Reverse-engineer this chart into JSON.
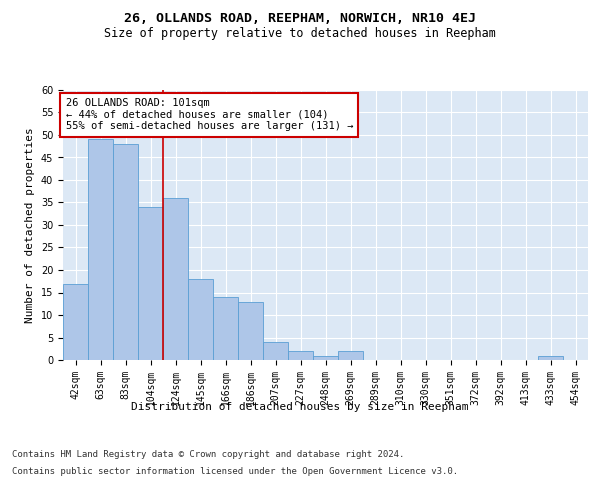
{
  "title": "26, OLLANDS ROAD, REEPHAM, NORWICH, NR10 4EJ",
  "subtitle": "Size of property relative to detached houses in Reepham",
  "xlabel": "Distribution of detached houses by size in Reepham",
  "ylabel": "Number of detached properties",
  "categories": [
    "42sqm",
    "63sqm",
    "83sqm",
    "104sqm",
    "124sqm",
    "145sqm",
    "166sqm",
    "186sqm",
    "207sqm",
    "227sqm",
    "248sqm",
    "269sqm",
    "289sqm",
    "310sqm",
    "330sqm",
    "351sqm",
    "372sqm",
    "392sqm",
    "413sqm",
    "433sqm",
    "454sqm"
  ],
  "values": [
    17,
    49,
    48,
    34,
    36,
    18,
    14,
    13,
    4,
    2,
    1,
    2,
    0,
    0,
    0,
    0,
    0,
    0,
    0,
    1,
    0
  ],
  "bar_color": "#aec6e8",
  "bar_edge_color": "#5a9fd4",
  "vline_x_index": 3,
  "vline_color": "#cc0000",
  "annotation_text": "26 OLLANDS ROAD: 101sqm\n← 44% of detached houses are smaller (104)\n55% of semi-detached houses are larger (131) →",
  "annotation_box_color": "#ffffff",
  "annotation_box_edge_color": "#cc0000",
  "ylim": [
    0,
    60
  ],
  "yticks": [
    0,
    5,
    10,
    15,
    20,
    25,
    30,
    35,
    40,
    45,
    50,
    55,
    60
  ],
  "background_color": "#dce8f5",
  "footer_line1": "Contains HM Land Registry data © Crown copyright and database right 2024.",
  "footer_line2": "Contains public sector information licensed under the Open Government Licence v3.0.",
  "title_fontsize": 9.5,
  "subtitle_fontsize": 8.5,
  "axis_label_fontsize": 8,
  "tick_fontsize": 7,
  "annotation_fontsize": 7.5,
  "footer_fontsize": 6.5
}
